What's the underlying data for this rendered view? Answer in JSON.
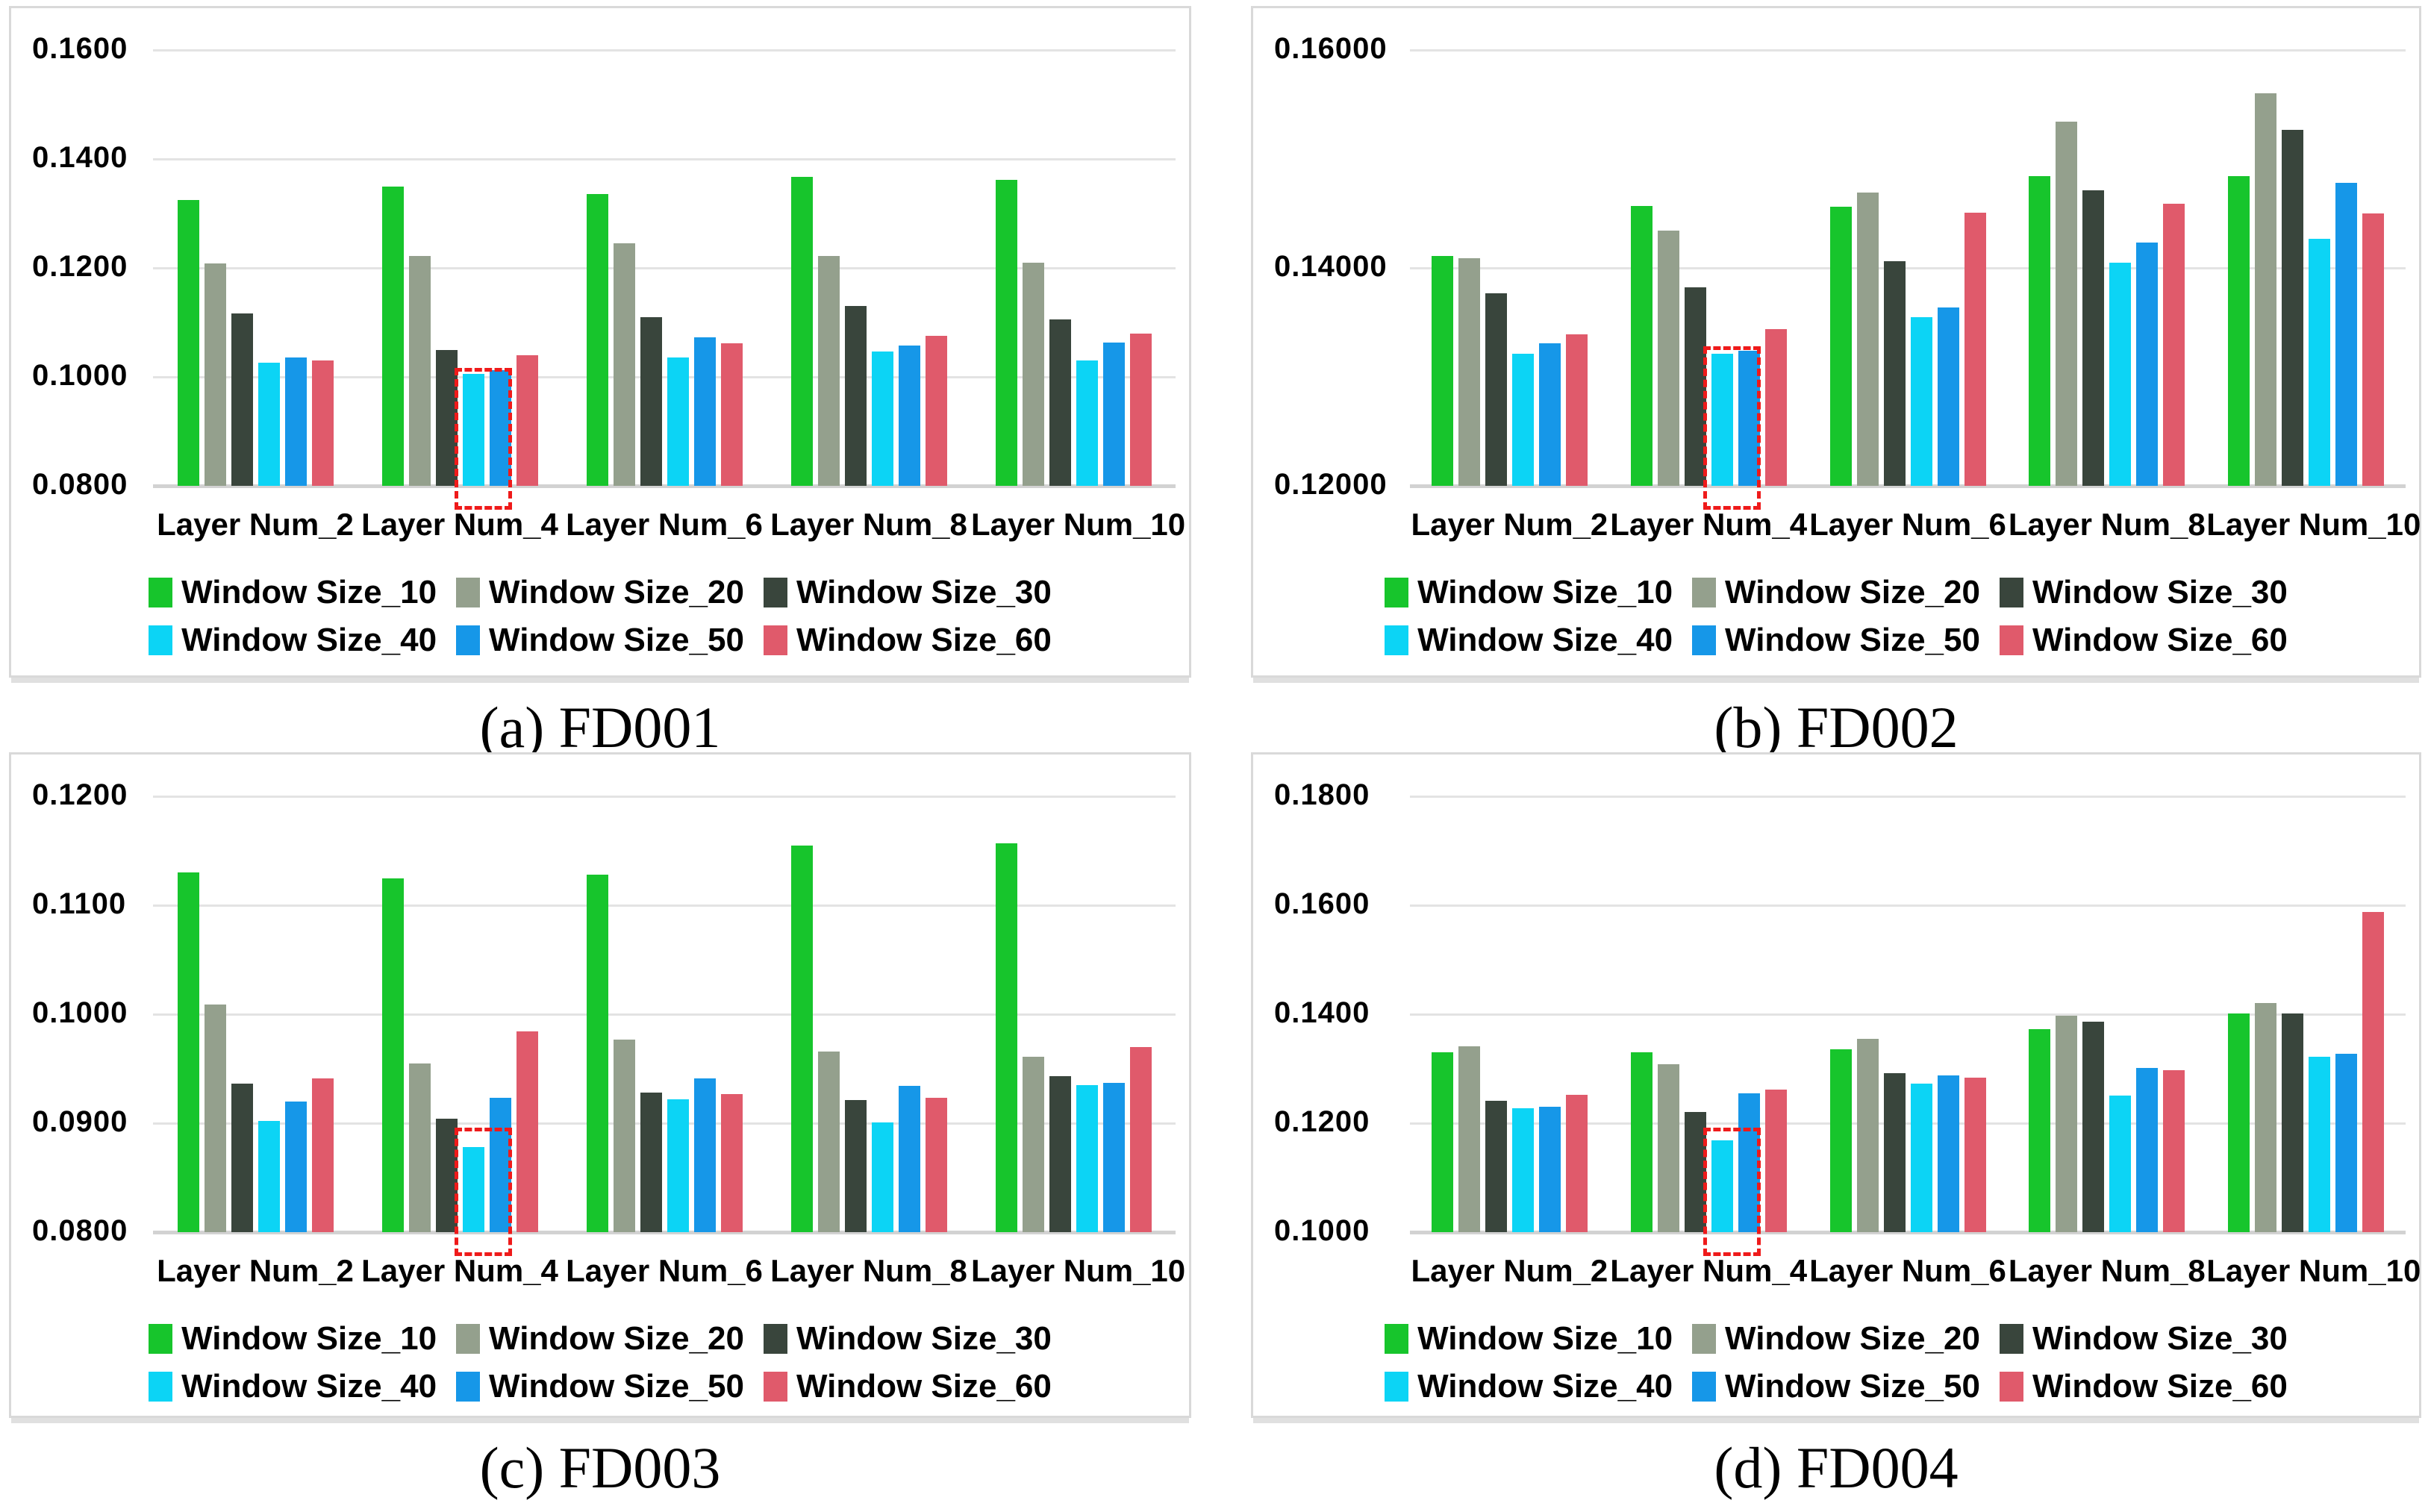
{
  "figure": {
    "background": "#ffffff",
    "panel_border_color": "#d9d9d9",
    "gridline_color": "#e3e3e3",
    "axis_line_color": "#d2d2d2",
    "highlight_color": "#ef1a1a",
    "text_color": "#000000"
  },
  "chart_data": [
    {
      "id": "fd001",
      "type": "bar",
      "caption": "(a) FD001",
      "categories": [
        "Layer Num_2",
        "Layer Num_4",
        "Layer Num_6",
        "Layer Num_8",
        "Layer Num_10"
      ],
      "series": [
        {
          "name": "Window Size_10",
          "color": "#17c52c",
          "values": [
            0.1325,
            0.135,
            0.1335,
            0.1367,
            0.1362
          ]
        },
        {
          "name": "Window Size_20",
          "color": "#94a08d",
          "values": [
            0.1208,
            0.1222,
            0.1245,
            0.1222,
            0.1209
          ]
        },
        {
          "name": "Window Size_30",
          "color": "#39453c",
          "values": [
            0.1117,
            0.105,
            0.111,
            0.113,
            0.1105
          ]
        },
        {
          "name": "Window Size_40",
          "color": "#0cd4f5",
          "values": [
            0.1026,
            0.1005,
            0.1036,
            0.1047,
            0.103
          ]
        },
        {
          "name": "Window Size_50",
          "color": "#1697e8",
          "values": [
            0.1036,
            0.1013,
            0.1072,
            0.1058,
            0.1063
          ]
        },
        {
          "name": "Window Size_60",
          "color": "#e05a6b",
          "values": [
            0.103,
            0.104,
            0.1061,
            0.1076,
            0.108
          ]
        }
      ],
      "ylim": [
        0.08,
        0.16
      ],
      "yticks": [
        {
          "value": 0.16,
          "label": "0.1600"
        },
        {
          "value": 0.14,
          "label": "0.1400"
        },
        {
          "value": 0.12,
          "label": "0.1200"
        },
        {
          "value": 0.1,
          "label": "0.1000"
        },
        {
          "value": 0.08,
          "label": "0.0800"
        }
      ],
      "grid": true,
      "legend_position": "bottom",
      "highlight": {
        "category": "Layer Num_4",
        "bars": [
          "Window Size_40",
          "Window Size_50"
        ],
        "top_value": 0.1016
      }
    },
    {
      "id": "fd002",
      "type": "bar",
      "caption": "(b) FD002",
      "categories": [
        "Layer Num_2",
        "Layer Num_4",
        "Layer Num_6",
        "Layer Num_8",
        "Layer Num_10"
      ],
      "series": [
        {
          "name": "Window Size_10",
          "color": "#17c52c",
          "values": [
            0.1411,
            0.1457,
            0.1456,
            0.1484,
            0.1484
          ]
        },
        {
          "name": "Window Size_20",
          "color": "#94a08d",
          "values": [
            0.1409,
            0.1434,
            0.1469,
            0.1534,
            0.156
          ]
        },
        {
          "name": "Window Size_30",
          "color": "#39453c",
          "values": [
            0.1377,
            0.1382,
            0.1406,
            0.1471,
            0.1527
          ]
        },
        {
          "name": "Window Size_40",
          "color": "#0cd4f5",
          "values": [
            0.1321,
            0.1321,
            0.1355,
            0.1405,
            0.1427
          ]
        },
        {
          "name": "Window Size_50",
          "color": "#1697e8",
          "values": [
            0.1331,
            0.1324,
            0.1364,
            0.1423,
            0.1478
          ]
        },
        {
          "name": "Window Size_60",
          "color": "#e05a6b",
          "values": [
            0.1339,
            0.1344,
            0.1451,
            0.1459,
            0.145
          ]
        }
      ],
      "ylim": [
        0.12,
        0.16
      ],
      "yticks": [
        {
          "value": 0.16,
          "label": "0.16000"
        },
        {
          "value": 0.14,
          "label": "0.14000"
        },
        {
          "value": 0.12,
          "label": "0.12000"
        }
      ],
      "grid": true,
      "legend_position": "bottom",
      "highlight": {
        "category": "Layer Num_4",
        "bars": [
          "Window Size_40",
          "Window Size_50"
        ],
        "top_value": 0.1328
      }
    },
    {
      "id": "fd003",
      "type": "bar",
      "caption": "(c) FD003",
      "categories": [
        "Layer Num_2",
        "Layer Num_4",
        "Layer Num_6",
        "Layer Num_8",
        "Layer Num_10"
      ],
      "series": [
        {
          "name": "Window Size_10",
          "color": "#17c52c",
          "values": [
            0.113,
            0.1125,
            0.1128,
            0.1155,
            0.1157
          ]
        },
        {
          "name": "Window Size_20",
          "color": "#94a08d",
          "values": [
            0.1009,
            0.0955,
            0.0977,
            0.0966,
            0.0961
          ]
        },
        {
          "name": "Window Size_30",
          "color": "#39453c",
          "values": [
            0.0936,
            0.0904,
            0.0928,
            0.0921,
            0.0943
          ]
        },
        {
          "name": "Window Size_40",
          "color": "#0cd4f5",
          "values": [
            0.0902,
            0.0878,
            0.0922,
            0.0901,
            0.0935
          ]
        },
        {
          "name": "Window Size_50",
          "color": "#1697e8",
          "values": [
            0.092,
            0.0923,
            0.0941,
            0.0934,
            0.0937
          ]
        },
        {
          "name": "Window Size_60",
          "color": "#e05a6b",
          "values": [
            0.0941,
            0.0984,
            0.0927,
            0.0923,
            0.097
          ]
        }
      ],
      "ylim": [
        0.08,
        0.12
      ],
      "yticks": [
        {
          "value": 0.12,
          "label": "0.1200"
        },
        {
          "value": 0.11,
          "label": "0.1100"
        },
        {
          "value": 0.1,
          "label": "0.1000"
        },
        {
          "value": 0.09,
          "label": "0.0900"
        },
        {
          "value": 0.08,
          "label": "0.0800"
        }
      ],
      "grid": true,
      "legend_position": "bottom",
      "highlight": {
        "category": "Layer Num_4",
        "bars": [
          "Window Size_40",
          "Window Size_50"
        ],
        "top_value": 0.0896
      }
    },
    {
      "id": "fd004",
      "type": "bar",
      "caption": "(d) FD004",
      "categories": [
        "Layer Num_2",
        "Layer Num_4",
        "Layer Num_6",
        "Layer Num_8",
        "Layer Num_10"
      ],
      "series": [
        {
          "name": "Window Size_10",
          "color": "#17c52c",
          "values": [
            0.133,
            0.133,
            0.1336,
            0.1372,
            0.1402
          ]
        },
        {
          "name": "Window Size_20",
          "color": "#94a08d",
          "values": [
            0.1341,
            0.1308,
            0.1355,
            0.1397,
            0.1421
          ]
        },
        {
          "name": "Window Size_30",
          "color": "#39453c",
          "values": [
            0.1241,
            0.1221,
            0.1292,
            0.1386,
            0.1402
          ]
        },
        {
          "name": "Window Size_40",
          "color": "#0cd4f5",
          "values": [
            0.1227,
            0.1168,
            0.1272,
            0.1251,
            0.1322
          ]
        },
        {
          "name": "Window Size_50",
          "color": "#1697e8",
          "values": [
            0.123,
            0.1255,
            0.1288,
            0.1302,
            0.1327
          ]
        },
        {
          "name": "Window Size_60",
          "color": "#e05a6b",
          "values": [
            0.1252,
            0.1262,
            0.1284,
            0.1297,
            0.1587
          ]
        }
      ],
      "ylim": [
        0.1,
        0.18
      ],
      "yticks": [
        {
          "value": 0.18,
          "label": "0.1800"
        },
        {
          "value": 0.16,
          "label": "0.1600"
        },
        {
          "value": 0.14,
          "label": "0.1400"
        },
        {
          "value": 0.12,
          "label": "0.1200"
        },
        {
          "value": 0.1,
          "label": "0.1000"
        }
      ],
      "grid": true,
      "legend_position": "bottom",
      "highlight": {
        "category": "Layer Num_4",
        "bars": [
          "Window Size_40",
          "Window Size_50"
        ],
        "top_value": 0.1192
      }
    }
  ]
}
